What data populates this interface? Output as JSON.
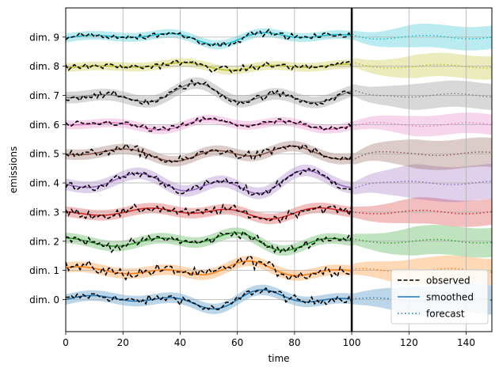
{
  "chart_data": {
    "type": "line",
    "title": "",
    "xlabel": "time",
    "ylabel": "emissions",
    "xlim": [
      0,
      149
    ],
    "ylim": [
      -1.1,
      10.0
    ],
    "xticks": [
      0,
      20,
      40,
      60,
      80,
      100,
      120,
      140
    ],
    "xtick_labels": [
      "0",
      "20",
      "40",
      "60",
      "80",
      "100",
      "120",
      "140"
    ],
    "ytick_labels": [
      "dim. 0",
      "dim. 1",
      "dim. 2",
      "dim. 3",
      "dim. 4",
      "dim. 5",
      "dim. 6",
      "dim. 7",
      "dim. 8",
      "dim. 9"
    ],
    "yticks": [
      0,
      1,
      2,
      3,
      4,
      5,
      6,
      7,
      8,
      9
    ],
    "grid": true,
    "forecast_start": 100,
    "series_colors": [
      "#1f77b4",
      "#ff7f0e",
      "#2ca02c",
      "#d62728",
      "#9467bd",
      "#8c564b",
      "#e377c2",
      "#7f7f7f",
      "#bcbd22",
      "#17becf"
    ],
    "smoothed_amplitude": [
      0.35,
      0.3,
      0.35,
      0.25,
      0.55,
      0.35,
      0.25,
      0.45,
      0.15,
      0.25
    ],
    "observed_noise": [
      0.15,
      0.2,
      0.15,
      0.15,
      0.15,
      0.15,
      0.1,
      0.12,
      0.12,
      0.1
    ],
    "band_halfwidth_smoothed": [
      0.18,
      0.18,
      0.18,
      0.18,
      0.2,
      0.18,
      0.15,
      0.2,
      0.15,
      0.15
    ],
    "band_halfwidth_forecast_end": [
      0.5,
      0.45,
      0.5,
      0.45,
      0.6,
      0.5,
      0.35,
      0.45,
      0.4,
      0.4
    ],
    "legend": {
      "position": "lower-right",
      "entries": [
        {
          "label": "observed",
          "style": "dashed",
          "color": "#000000"
        },
        {
          "label": "smoothed",
          "style": "solid",
          "color": "#1f77b4"
        },
        {
          "label": "forecast",
          "style": "dotted",
          "color": "#1f77b4"
        }
      ]
    }
  }
}
